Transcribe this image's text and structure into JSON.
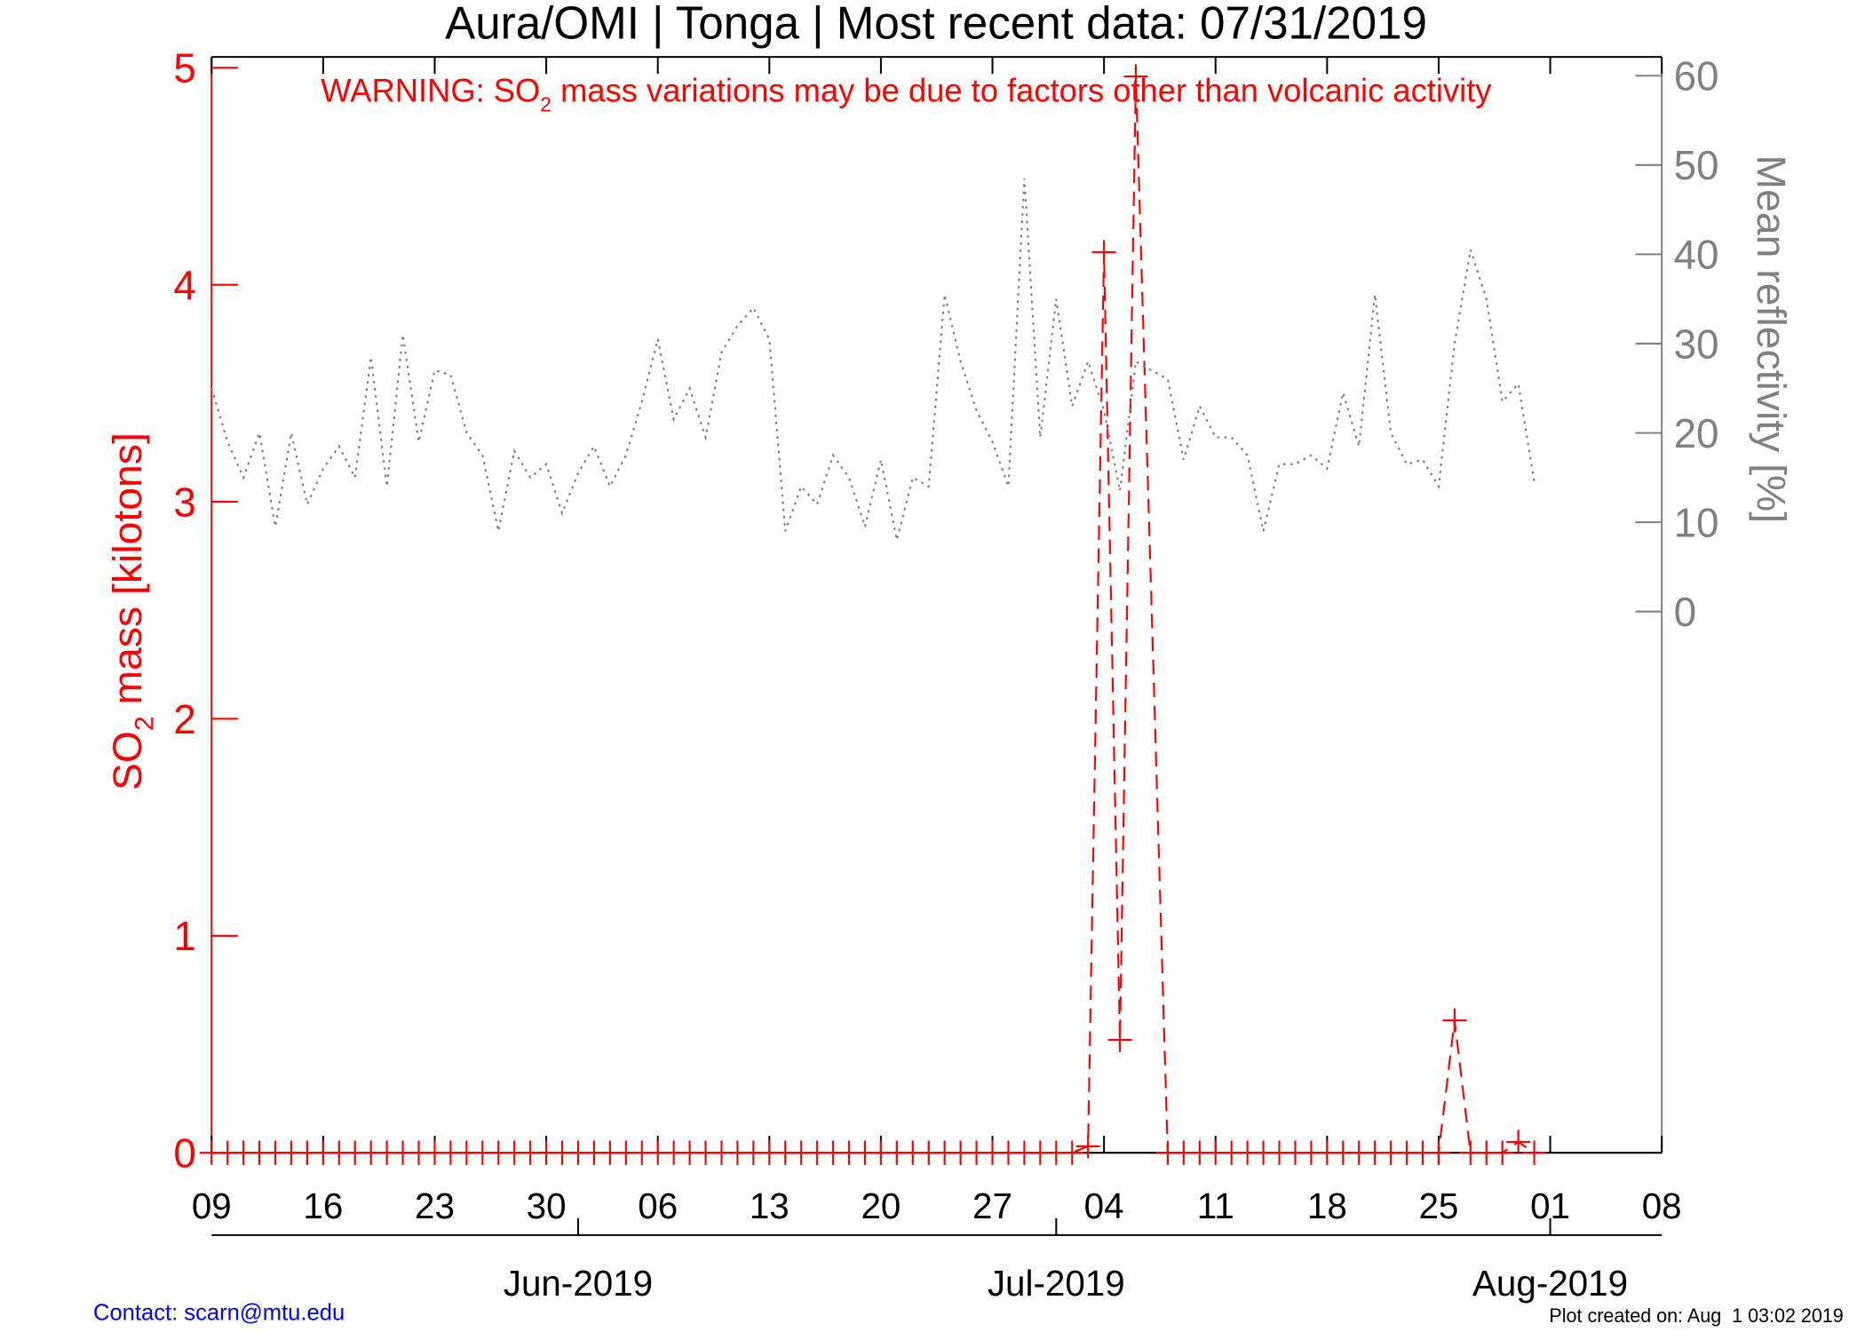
{
  "chart_data": {
    "type": "line",
    "title": "Aura/OMI | Tonga | Most recent data: 07/31/2019",
    "annotation": [
      "WARNING: SO",
      "2",
      " mass variations may be due to factors other than volcanic activity"
    ],
    "ylabel": [
      "SO",
      "2",
      " mass [kilotons]"
    ],
    "y2label": "Mean reflectivity [%]",
    "xlim": [
      "2019-05-09",
      "2019-08-08"
    ],
    "xticks": [
      {
        "value": "2019-05-09",
        "label": "09"
      },
      {
        "value": "2019-05-16",
        "label": "16"
      },
      {
        "value": "2019-05-23",
        "label": "23"
      },
      {
        "value": "2019-05-30",
        "label": "30"
      },
      {
        "value": "2019-06-06",
        "label": "06"
      },
      {
        "value": "2019-06-13",
        "label": "13"
      },
      {
        "value": "2019-06-20",
        "label": "20"
      },
      {
        "value": "2019-06-27",
        "label": "27"
      },
      {
        "value": "2019-07-04",
        "label": "04"
      },
      {
        "value": "2019-07-11",
        "label": "11"
      },
      {
        "value": "2019-07-18",
        "label": "18"
      },
      {
        "value": "2019-07-25",
        "label": "25"
      },
      {
        "value": "2019-08-01",
        "label": "01"
      },
      {
        "value": "2019-08-08",
        "label": "08"
      }
    ],
    "month_ticks": [
      {
        "value": "2019-06-01",
        "label": "Jun-2019"
      },
      {
        "value": "2019-07-01",
        "label": "Jul-2019"
      },
      {
        "value": "2019-08-01",
        "label": "Aug-2019"
      }
    ],
    "ylim": [
      0,
      5.05
    ],
    "yticks": [
      0,
      1,
      2,
      3,
      4,
      5
    ],
    "y2lim": [
      -60.6,
      62.1
    ],
    "y2ticks": [
      0,
      10,
      20,
      30,
      40,
      50,
      60
    ],
    "series": [
      {
        "axis": "y",
        "color": "#ff0000",
        "style": "dashed",
        "marker": "plus",
        "x": [
          "2019-05-09",
          "2019-05-10",
          "2019-05-11",
          "2019-05-12",
          "2019-05-13",
          "2019-05-14",
          "2019-05-15",
          "2019-05-16",
          "2019-05-17",
          "2019-05-18",
          "2019-05-19",
          "2019-05-20",
          "2019-05-21",
          "2019-05-22",
          "2019-05-23",
          "2019-05-24",
          "2019-05-25",
          "2019-05-26",
          "2019-05-27",
          "2019-05-28",
          "2019-05-29",
          "2019-05-30",
          "2019-05-31",
          "2019-06-01",
          "2019-06-02",
          "2019-06-03",
          "2019-06-04",
          "2019-06-05",
          "2019-06-06",
          "2019-06-07",
          "2019-06-08",
          "2019-06-09",
          "2019-06-10",
          "2019-06-11",
          "2019-06-12",
          "2019-06-13",
          "2019-06-14",
          "2019-06-15",
          "2019-06-16",
          "2019-06-17",
          "2019-06-18",
          "2019-06-19",
          "2019-06-20",
          "2019-06-21",
          "2019-06-22",
          "2019-06-23",
          "2019-06-24",
          "2019-06-25",
          "2019-06-26",
          "2019-06-27",
          "2019-06-28",
          "2019-06-29",
          "2019-06-30",
          "2019-07-01",
          "2019-07-02",
          "2019-07-03",
          "2019-07-04",
          "2019-07-05",
          "2019-07-06",
          "2019-07-08",
          "2019-07-09",
          "2019-07-10",
          "2019-07-11",
          "2019-07-12",
          "2019-07-13",
          "2019-07-14",
          "2019-07-15",
          "2019-07-16",
          "2019-07-17",
          "2019-07-18",
          "2019-07-19",
          "2019-07-20",
          "2019-07-21",
          "2019-07-22",
          "2019-07-23",
          "2019-07-24",
          "2019-07-25",
          "2019-07-26",
          "2019-07-27",
          "2019-07-28",
          "2019-07-29",
          "2019-07-30",
          "2019-07-31"
        ],
        "values": [
          0,
          0,
          0,
          0,
          0,
          0,
          0,
          0,
          0,
          0,
          0,
          0,
          0,
          0,
          0,
          0,
          0,
          0,
          0,
          0,
          0,
          0,
          0,
          0,
          0,
          0,
          0,
          0,
          0,
          0,
          0,
          0,
          0,
          0,
          0,
          0,
          0,
          0,
          0,
          0,
          0,
          0,
          0,
          0,
          0,
          0,
          0,
          0,
          0,
          0,
          0,
          0,
          0,
          0,
          0,
          0.03,
          4.15,
          0.52,
          4.96,
          0,
          0,
          0,
          0,
          0,
          0,
          0,
          0,
          0,
          0,
          0,
          0,
          0,
          0,
          0,
          0,
          0,
          0,
          0.61,
          0,
          0,
          0,
          0.05,
          0
        ]
      },
      {
        "axis": "y2",
        "color": "#808080",
        "style": "dotted",
        "x": [
          "2019-05-09",
          "2019-05-10",
          "2019-05-11",
          "2019-05-12",
          "2019-05-13",
          "2019-05-14",
          "2019-05-15",
          "2019-05-16",
          "2019-05-17",
          "2019-05-18",
          "2019-05-19",
          "2019-05-20",
          "2019-05-21",
          "2019-05-22",
          "2019-05-23",
          "2019-05-24",
          "2019-05-25",
          "2019-05-26",
          "2019-05-27",
          "2019-05-28",
          "2019-05-29",
          "2019-05-30",
          "2019-05-31",
          "2019-06-01",
          "2019-06-02",
          "2019-06-03",
          "2019-06-04",
          "2019-06-05",
          "2019-06-06",
          "2019-06-07",
          "2019-06-08",
          "2019-06-09",
          "2019-06-10",
          "2019-06-11",
          "2019-06-12",
          "2019-06-13",
          "2019-06-14",
          "2019-06-15",
          "2019-06-16",
          "2019-06-17",
          "2019-06-18",
          "2019-06-19",
          "2019-06-20",
          "2019-06-21",
          "2019-06-22",
          "2019-06-23",
          "2019-06-24",
          "2019-06-25",
          "2019-06-26",
          "2019-06-27",
          "2019-06-28",
          "2019-06-29",
          "2019-06-30",
          "2019-07-01",
          "2019-07-02",
          "2019-07-03",
          "2019-07-04",
          "2019-07-05",
          "2019-07-06",
          "2019-07-07",
          "2019-07-08",
          "2019-07-09",
          "2019-07-10",
          "2019-07-11",
          "2019-07-12",
          "2019-07-13",
          "2019-07-14",
          "2019-07-15",
          "2019-07-16",
          "2019-07-17",
          "2019-07-18",
          "2019-07-19",
          "2019-07-20",
          "2019-07-21",
          "2019-07-22",
          "2019-07-23",
          "2019-07-24",
          "2019-07-25",
          "2019-07-26",
          "2019-07-27",
          "2019-07-28",
          "2019-07-29",
          "2019-07-30",
          "2019-07-31"
        ],
        "values": [
          25,
          19,
          15,
          20,
          9.5,
          20,
          12,
          16,
          18.5,
          15,
          28.5,
          14,
          31,
          19,
          27,
          26.5,
          20,
          17.5,
          9,
          18,
          15,
          16.5,
          11,
          15.5,
          18.5,
          14,
          17.5,
          23.5,
          30.5,
          21.5,
          25,
          19.5,
          29,
          32,
          34,
          30.5,
          9,
          14,
          12,
          17.5,
          15,
          9.5,
          17,
          8,
          15,
          14,
          35.5,
          28,
          22.5,
          19,
          14,
          48.5,
          19.5,
          35,
          23,
          28,
          22.5,
          13.5,
          28,
          27,
          26,
          17,
          23,
          19.5,
          19.5,
          17.5,
          9,
          16.5,
          16.5,
          17.5,
          16,
          24.5,
          18.5,
          35.5,
          20,
          16.5,
          17,
          14,
          30,
          40.5,
          35,
          23.5,
          25.5,
          14.5
        ]
      }
    ],
    "footer_left": "Contact: scarn@mtu.edu",
    "footer_right": "Plot created on: Aug  1 03:02 2019"
  }
}
